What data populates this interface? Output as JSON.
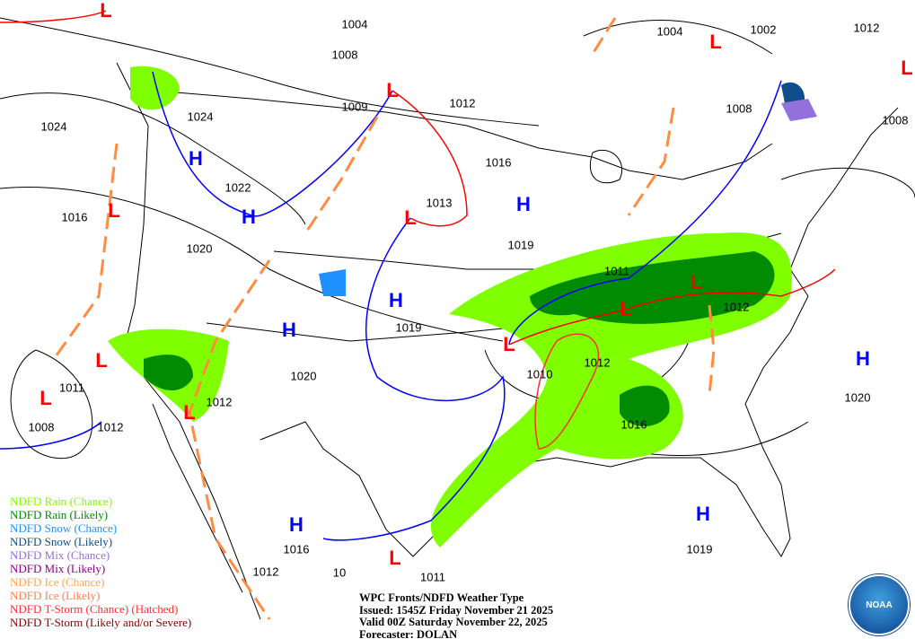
{
  "title": "WPC Fronts/NDFD Weather Type",
  "issued": "Issued: 1545Z Friday November 21 2025",
  "valid": "Valid 00Z Saturday November 22, 2025",
  "forecaster": "Forecaster: DOLAN",
  "logo_text": "NOAA",
  "legend": [
    {
      "label": "NDFD Rain (Chance)",
      "color": "#7fff00"
    },
    {
      "label": "NDFD Rain (Likely)",
      "color": "#008b00"
    },
    {
      "label": "NDFD Snow (Chance)",
      "color": "#1e90ff"
    },
    {
      "label": "NDFD Snow (Likely)",
      "color": "#104e8b"
    },
    {
      "label": "NDFD Mix (Chance)",
      "color": "#9370db"
    },
    {
      "label": "NDFD Mix (Likely)",
      "color": "#8b008b"
    },
    {
      "label": "NDFD Ice (Chance)",
      "color": "#ffa54f"
    },
    {
      "label": "NDFD Ice (Likely)",
      "color": "#ff7f50"
    },
    {
      "label": "NDFD T-Storm (Chance) (Hatched)",
      "color": "#ff3030"
    },
    {
      "label": "NDFD T-Storm (Likely and/or Severe)",
      "color": "#8b0000"
    }
  ],
  "isobar_labels": [
    "1004",
    "1008",
    "1009",
    "1012",
    "1016",
    "1013",
    "1019",
    "1024",
    "1024",
    "1022",
    "1016",
    "1020",
    "1004",
    "1002",
    "1012",
    "1008",
    "1008",
    "1011",
    "1012",
    "1019",
    "1020",
    "1012",
    "1011",
    "1008",
    "1012",
    "1010",
    "1012",
    "1016",
    "1020",
    "1019",
    "1012",
    "1016",
    "1011",
    "10"
  ],
  "pressure_centers": [
    "H",
    "H",
    "H",
    "H",
    "H",
    "H",
    "H",
    "H",
    "L",
    "L",
    "L",
    "L",
    "L",
    "L",
    "L",
    "L",
    "L",
    "L",
    "L",
    "L",
    "L"
  ],
  "colors": {
    "high": "#0000ff",
    "low": "#ff0000",
    "cold_front": "#0000ff",
    "warm_front": "#ff0000",
    "trough": "#ff8c42"
  }
}
